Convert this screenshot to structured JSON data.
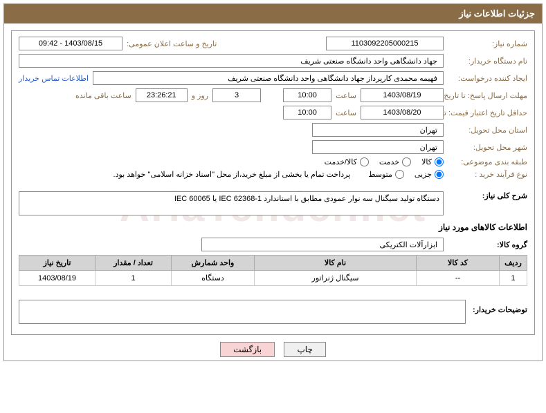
{
  "header": {
    "title": "جزئیات اطلاعات نیاز"
  },
  "form": {
    "need_no_label": "شماره نیاز:",
    "need_no": "1103092205000215",
    "announce_label": "تاریخ و ساعت اعلان عمومی:",
    "announce_value": "1403/08/15 - 09:42",
    "buyer_org_label": "نام دستگاه خریدار:",
    "buyer_org": "جهاد دانشگاهی واحد دانشگاه صنعتی شریف",
    "requester_label": "ایجاد کننده درخواست:",
    "requester": "فهیمه محمدی کارپرداز جهاد دانشگاهی واحد دانشگاه صنعتی شریف",
    "contact_link": "اطلاعات تماس خریدار",
    "deadline_label": "مهلت ارسال پاسخ: تا تاریخ:",
    "deadline_date": "1403/08/19",
    "hour_label": "ساعت",
    "deadline_time": "10:00",
    "days_value": "3",
    "days_and": "روز و",
    "remain_time": "23:26:21",
    "remain_label": "ساعت باقی مانده",
    "validity_label": "حداقل تاریخ اعتبار قیمت: تا تاریخ:",
    "validity_date": "1403/08/20",
    "validity_time": "10:00",
    "delivery_province_label": "استان محل تحویل:",
    "delivery_province": "تهران",
    "delivery_city_label": "شهر محل تحویل:",
    "delivery_city": "تهران",
    "category_label": "طبقه بندی موضوعی:",
    "cat_goods": "کالا",
    "cat_service": "خدمت",
    "cat_goods_service": "کالا/خدمت",
    "purchase_type_label": "نوع فرآیند خرید :",
    "pt_partial": "جزیی",
    "pt_medium": "متوسط",
    "purchase_note": "پرداخت تمام یا بخشی از مبلغ خرید،از محل \"اسناد خزانه اسلامی\" خواهد بود.",
    "desc_label": "شرح کلی نیاز:",
    "desc_value": "دستگاه تولید سیگنال سه نوار عمودی مطابق با استاندارد IEC 62368-1 یا IEC 60065",
    "goods_info_label": "اطلاعات کالاهای مورد نیاز",
    "goods_group_label": "گروه کالا:",
    "goods_group": "ابزارآلات الکتریکی",
    "buyer_notes_label": "توضیحات خریدار:",
    "buyer_notes": ""
  },
  "table": {
    "headers": {
      "row": "ردیف",
      "code": "کد کالا",
      "name": "نام کالا",
      "unit": "واحد شمارش",
      "qty": "تعداد / مقدار",
      "date": "تاریخ نیاز"
    },
    "rows": [
      {
        "row": "1",
        "code": "--",
        "name": "سیگنال ژنراتور",
        "unit": "دستگاه",
        "qty": "1",
        "date": "1403/08/19"
      }
    ]
  },
  "buttons": {
    "print": "چاپ",
    "back": "بازگشت"
  },
  "watermark": "AriaTender.net",
  "colors": {
    "header_bg": "#8a6d47",
    "label": "#8a6d47",
    "link": "#2b5fc7",
    "th_bg": "#d4d4d4"
  }
}
